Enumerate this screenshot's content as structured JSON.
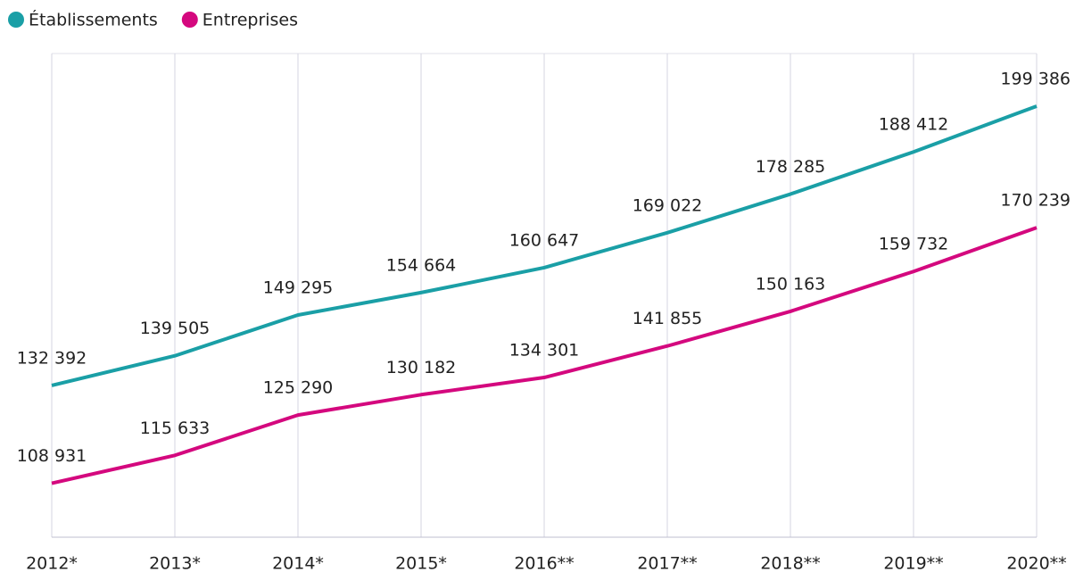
{
  "chart_data": {
    "type": "line",
    "categories": [
      "2012*",
      "2013*",
      "2014*",
      "2015*",
      "2016**",
      "2017**",
      "2018**",
      "2019**",
      "2020**"
    ],
    "series": [
      {
        "name": "Établissements",
        "color": "#1a9fa6",
        "values": [
          132392,
          139505,
          149295,
          154664,
          160647,
          169022,
          178285,
          188412,
          199386
        ],
        "value_labels": [
          "132 392",
          "139 505",
          "149 295",
          "154 664",
          "160 647",
          "169 022",
          "178 285",
          "188 412",
          "199 386"
        ]
      },
      {
        "name": "Entreprises",
        "color": "#d4087e",
        "values": [
          108931,
          115633,
          125290,
          130182,
          134301,
          141855,
          150163,
          159732,
          170239
        ],
        "value_labels": [
          "108 931",
          "115 633",
          "125 290",
          "130 182",
          "134 301",
          "141 855",
          "150 163",
          "159 732",
          "170 239"
        ]
      }
    ],
    "ylim": [
      96000,
      212000
    ],
    "grid": true
  }
}
